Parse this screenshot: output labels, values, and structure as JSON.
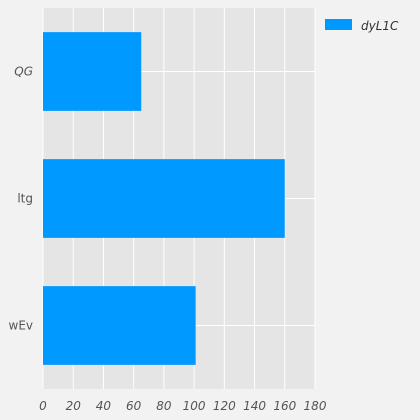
{
  "chart_data": {
    "type": "bar",
    "orientation": "horizontal",
    "categories": [
      "QG",
      "ltg",
      "wEv"
    ],
    "category_italic": [
      true,
      false,
      false
    ],
    "series": [
      {
        "name": "dyL1C",
        "values": [
          65,
          160,
          101
        ],
        "color": "#0099ff"
      }
    ],
    "xlim": [
      0,
      180
    ],
    "xticks": [
      0,
      20,
      40,
      60,
      80,
      100,
      120,
      140,
      160,
      180
    ],
    "xtick_style": "italic",
    "grid": true,
    "legend": "top-right",
    "plot_background": "#e5e5e5",
    "figure_background": "#f2f2f2"
  }
}
